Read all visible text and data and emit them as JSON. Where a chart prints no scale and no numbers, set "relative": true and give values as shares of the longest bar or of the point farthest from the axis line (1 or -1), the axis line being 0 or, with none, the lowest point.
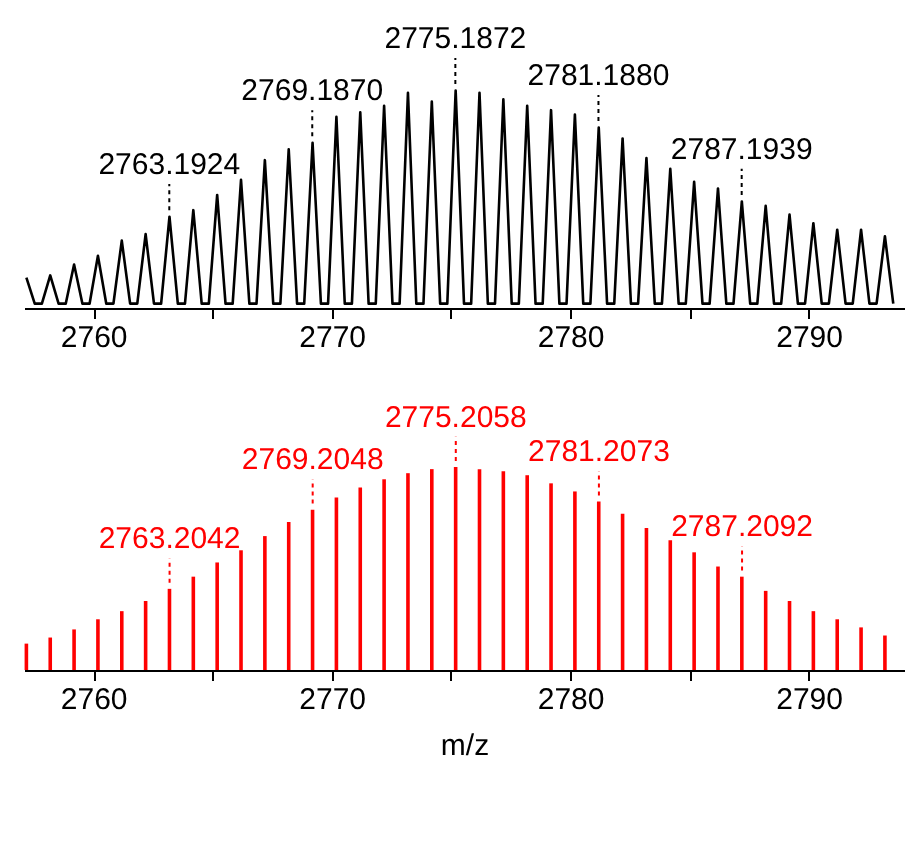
{
  "chart_data": [
    {
      "type": "line",
      "relative": true,
      "xlim": [
        2757.1,
        2794
      ],
      "xticks": [
        2760,
        {
          "value": 2765,
          "label": null
        },
        2770,
        {
          "value": 2775,
          "label": null
        },
        2780,
        {
          "value": 2785,
          "label": null
        },
        2790
      ],
      "series": [
        {
          "color": "#000000",
          "x": [
            2757.2,
            2757.55,
            2757.85,
            2758.2,
            2758.55,
            2758.85,
            2759.2,
            2759.55,
            2759.85,
            2760.2,
            2760.55,
            2760.85,
            2761.2,
            2761.55,
            2761.85,
            2762.2,
            2762.55,
            2762.85,
            2763.2,
            2763.55,
            2763.85,
            2764.2,
            2764.55,
            2764.85,
            2765.2,
            2765.55,
            2765.85,
            2766.2,
            2766.55,
            2766.85,
            2767.2,
            2767.55,
            2767.85,
            2768.2,
            2768.55,
            2768.85,
            2769.2,
            2769.55,
            2769.85,
            2770.2,
            2770.55,
            2770.85,
            2771.2,
            2771.55,
            2771.85,
            2772.2,
            2772.55,
            2772.85,
            2773.2,
            2773.55,
            2773.85,
            2774.2,
            2774.55,
            2774.85,
            2775.2,
            2775.55,
            2775.85,
            2776.2,
            2776.55,
            2776.85,
            2777.2,
            2777.55,
            2777.85,
            2778.2,
            2778.55,
            2778.85,
            2779.2,
            2779.55,
            2779.85,
            2780.2,
            2780.55,
            2780.85,
            2781.2,
            2781.55,
            2781.85,
            2782.2,
            2782.55,
            2782.85,
            2783.2,
            2783.55,
            2783.85,
            2784.2,
            2784.55,
            2784.85,
            2785.2,
            2785.55,
            2785.85,
            2786.2,
            2786.55,
            2786.85,
            2787.2,
            2787.55,
            2787.85,
            2788.2,
            2788.55,
            2788.85,
            2789.2,
            2789.55,
            2789.85,
            2790.2,
            2790.55,
            2790.85,
            2791.2,
            2791.55,
            2791.85,
            2792.2,
            2792.55,
            2792.85,
            2793.2,
            2793.55
          ],
          "values": [
            0.14,
            0.02,
            0.02,
            0.15,
            0.02,
            0.02,
            0.2,
            0.02,
            0.02,
            0.24,
            0.02,
            0.02,
            0.31,
            0.02,
            0.02,
            0.34,
            0.02,
            0.02,
            0.42,
            0.02,
            0.02,
            0.45,
            0.02,
            0.02,
            0.52,
            0.02,
            0.02,
            0.59,
            0.02,
            0.02,
            0.68,
            0.02,
            0.02,
            0.73,
            0.02,
            0.02,
            0.76,
            0.02,
            0.02,
            0.88,
            0.02,
            0.02,
            0.9,
            0.02,
            0.02,
            0.93,
            0.02,
            0.02,
            0.99,
            0.02,
            0.02,
            0.95,
            0.02,
            0.02,
            1,
            0.02,
            0.02,
            0.99,
            0.02,
            0.02,
            0.96,
            0.02,
            0.02,
            0.93,
            0.02,
            0.02,
            0.91,
            0.02,
            0.02,
            0.89,
            0.02,
            0.02,
            0.83,
            0.02,
            0.02,
            0.78,
            0.02,
            0.02,
            0.69,
            0.02,
            0.02,
            0.64,
            0.02,
            0.02,
            0.58,
            0.02,
            0.02,
            0.55,
            0.02,
            0.02,
            0.49,
            0.02,
            0.02,
            0.47,
            0.02,
            0.02,
            0.43,
            0.02,
            0.02,
            0.39,
            0.02,
            0.02,
            0.36,
            0.02,
            0.02,
            0.36,
            0.02,
            0.02,
            0.33,
            0.02
          ]
        }
      ],
      "annotations": [
        {
          "text": "2763.1924",
          "x": 2763.1924,
          "y": 0.42
        },
        {
          "text": "2769.1870",
          "x": 2769.187,
          "y": 0.76
        },
        {
          "text": "2775.1872",
          "x": 2775.1872,
          "y": 1
        },
        {
          "text": "2781.1880",
          "x": 2781.188,
          "y": 0.83
        },
        {
          "text": "2787.1939",
          "x": 2787.1939,
          "y": 0.49
        }
      ]
    },
    {
      "type": "bar",
      "relative": true,
      "xlabel": "m/z",
      "xlim": [
        2757.1,
        2794
      ],
      "xticks": [
        2760,
        {
          "value": 2765,
          "label": null
        },
        2770,
        {
          "value": 2775,
          "label": null
        },
        2780,
        {
          "value": 2785,
          "label": null
        },
        2790
      ],
      "series": [
        {
          "color": "#ff0000",
          "x": [
            2757.2,
            2758.2,
            2759.2,
            2760.2,
            2761.2,
            2762.2,
            2763.2,
            2764.2,
            2765.2,
            2766.2,
            2767.2,
            2768.2,
            2769.2,
            2770.2,
            2771.2,
            2772.2,
            2773.2,
            2774.2,
            2775.2,
            2776.2,
            2777.2,
            2778.2,
            2779.2,
            2780.2,
            2781.2,
            2782.2,
            2783.2,
            2784.2,
            2785.2,
            2786.2,
            2787.2,
            2788.2,
            2789.2,
            2790.2,
            2791.2,
            2792.2,
            2793.2
          ],
          "values": [
            0.13,
            0.16,
            0.2,
            0.25,
            0.29,
            0.34,
            0.4,
            0.46,
            0.53,
            0.59,
            0.66,
            0.73,
            0.79,
            0.85,
            0.9,
            0.94,
            0.97,
            0.99,
            1,
            0.99,
            0.98,
            0.96,
            0.92,
            0.88,
            0.83,
            0.77,
            0.7,
            0.64,
            0.58,
            0.51,
            0.46,
            0.39,
            0.34,
            0.29,
            0.25,
            0.21,
            0.17
          ]
        }
      ],
      "annotations": [
        {
          "text": "2763.2042",
          "x": 2763.2042,
          "y": 0.4
        },
        {
          "text": "2769.2048",
          "x": 2769.2048,
          "y": 0.79
        },
        {
          "text": "2775.2058",
          "x": 2775.2058,
          "y": 1
        },
        {
          "text": "2781.2073",
          "x": 2781.2073,
          "y": 0.83
        },
        {
          "text": "2787.2092",
          "x": 2787.2092,
          "y": 0.46
        }
      ]
    }
  ]
}
